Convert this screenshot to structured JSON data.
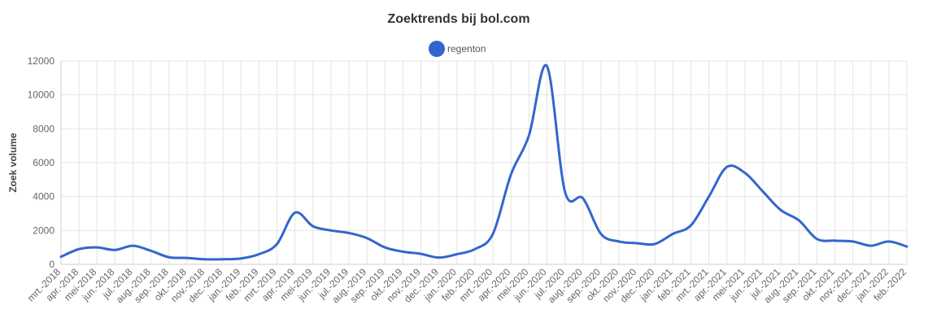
{
  "chart_data": {
    "type": "line",
    "title": "Zoektrends bij bol.com",
    "ylabel": "Zoek volume",
    "xlabel": "",
    "ylim": [
      0,
      12000
    ],
    "yticks": [
      0,
      2000,
      4000,
      6000,
      8000,
      10000,
      12000
    ],
    "grid": true,
    "legend_position": "top",
    "categories": [
      "mrt.-2018",
      "apr.-2018",
      "mei-2018",
      "jun.-2018",
      "jul.-2018",
      "aug.-2018",
      "sep.-2018",
      "okt.-2018",
      "nov.-2018",
      "dec.-2018",
      "jan.-2019",
      "feb.-2019",
      "mrt.-2019",
      "apr.-2019",
      "mei-2019",
      "jun.-2019",
      "jul.-2019",
      "aug.-2019",
      "sep.-2019",
      "okt.-2019",
      "nov.-2019",
      "dec.-2019",
      "jan.-2020",
      "feb.-2020",
      "mrt.-2020",
      "apr.-2020",
      "mei-2020",
      "jun.-2020",
      "jul.-2020",
      "aug.-2020",
      "sep.-2020",
      "okt.-2020",
      "nov.-2020",
      "dec.-2020",
      "jan.-2021",
      "feb.-2021",
      "mrt.-2021",
      "apr.-2021",
      "mei-2021",
      "jun.-2021",
      "jul.-2021",
      "aug.-2021",
      "sep.-2021",
      "okt.-2021",
      "nov.-2021",
      "dec.-2021",
      "jan.-2022",
      "feb.-2022"
    ],
    "series": [
      {
        "name": "regenton",
        "color": "#3366cc",
        "values": [
          450,
          900,
          1000,
          850,
          1100,
          800,
          420,
          380,
          300,
          300,
          350,
          600,
          1200,
          3050,
          2250,
          2000,
          1850,
          1550,
          1000,
          750,
          620,
          400,
          600,
          900,
          1800,
          5300,
          7600,
          11700,
          4300,
          3900,
          1800,
          1350,
          1250,
          1200,
          1800,
          2300,
          4000,
          5750,
          5400,
          4300,
          3200,
          2600,
          1500,
          1400,
          1350,
          1100,
          1350,
          1050
        ]
      }
    ]
  }
}
